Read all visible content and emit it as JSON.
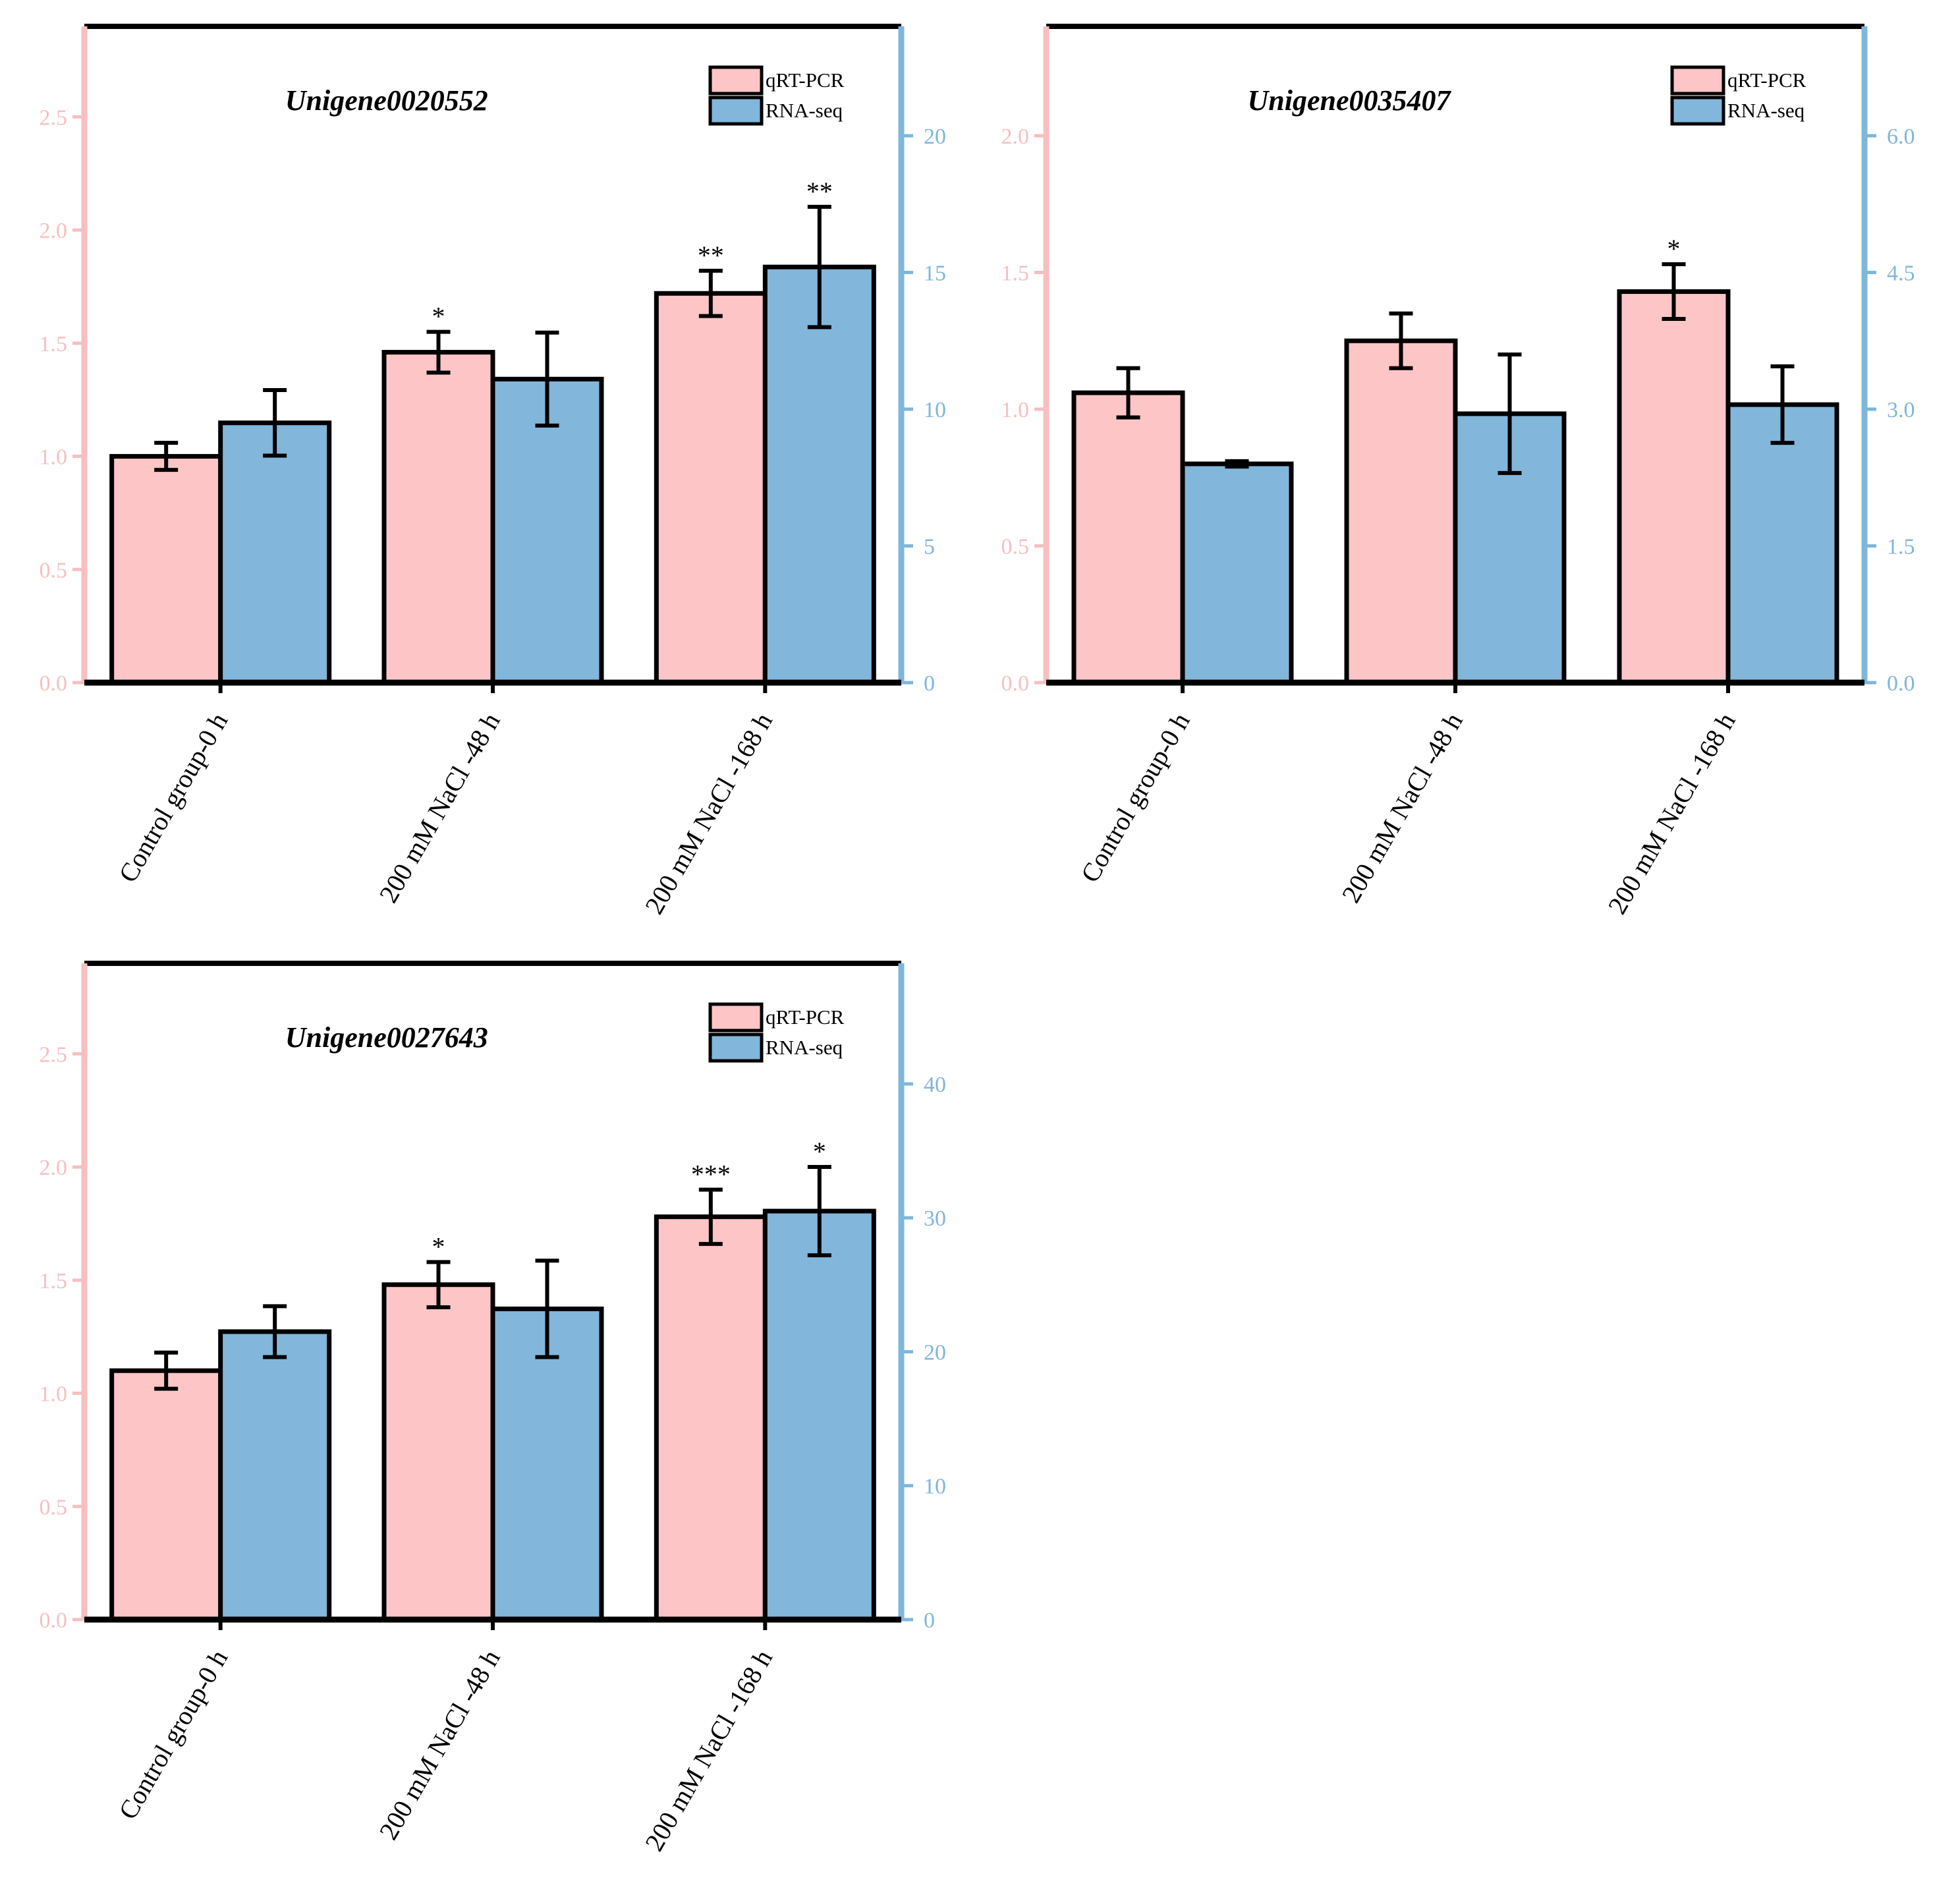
{
  "colors": {
    "qrt": "#fdc5c6",
    "rna": "#82b6db",
    "left_axis": "#f7bfc0",
    "right_axis": "#7fb6db",
    "frame": "#000000"
  },
  "chart_data": [
    {
      "type": "bar",
      "title": "Unigene0020552",
      "categories": [
        "Control group-0 h",
        "200 mM NaCl -48 h",
        "200 mM NaCl -168 h"
      ],
      "series": [
        {
          "name": "qRT-PCR",
          "axis": "left",
          "values": [
            1.0,
            1.46,
            1.72
          ],
          "errors": [
            0.06,
            0.09,
            0.1
          ],
          "significance": [
            "",
            "*",
            "**"
          ]
        },
        {
          "name": "RNA-seq",
          "axis": "right",
          "values": [
            9.5,
            11.1,
            15.2
          ],
          "errors": [
            1.2,
            1.7,
            2.2
          ],
          "significance": [
            "",
            "",
            "**"
          ]
        }
      ],
      "left_axis": {
        "ylim": [
          0,
          2.9
        ],
        "ticks": [
          0.0,
          0.5,
          1.0,
          1.5,
          2.0,
          2.5
        ],
        "labels": [
          "0.0",
          "0.5",
          "1.0",
          "1.5",
          "2.0",
          "2.5"
        ]
      },
      "right_axis": {
        "ylim": [
          0,
          24
        ],
        "ticks": [
          0,
          5,
          10,
          15,
          20
        ],
        "labels": [
          "0",
          "5",
          "10",
          "15",
          "20"
        ]
      },
      "legend": "top-right"
    },
    {
      "type": "bar",
      "title": "Unigene0035407",
      "categories": [
        "Control group-0 h",
        "200 mM NaCl -48 h",
        "200 mM NaCl -168 h"
      ],
      "series": [
        {
          "name": "qRT-PCR",
          "axis": "left",
          "values": [
            1.06,
            1.25,
            1.43
          ],
          "errors": [
            0.09,
            0.1,
            0.1
          ],
          "significance": [
            "",
            "",
            "*"
          ]
        },
        {
          "name": "RNA-seq",
          "axis": "right",
          "values": [
            2.4,
            2.95,
            3.05
          ],
          "errors": [
            0.03,
            0.65,
            0.42
          ],
          "significance": [
            "",
            "",
            ""
          ]
        }
      ],
      "left_axis": {
        "ylim": [
          0,
          2.4
        ],
        "ticks": [
          0.0,
          0.5,
          1.0,
          1.5,
          2.0
        ],
        "labels": [
          "0.0",
          "0.5",
          "1.0",
          "1.5",
          "2.0"
        ]
      },
      "right_axis": {
        "ylim": [
          0,
          7.2
        ],
        "ticks": [
          0,
          1.5,
          3.0,
          4.5,
          6.0
        ],
        "labels": [
          "0.0",
          "1.5",
          "3.0",
          "4.5",
          "6.0"
        ]
      },
      "legend": "top-right"
    },
    {
      "type": "bar",
      "title": "Unigene0027643",
      "categories": [
        "Control group-0 h",
        "200 mM NaCl -48 h",
        "200 mM NaCl -168 h"
      ],
      "series": [
        {
          "name": "qRT-PCR",
          "axis": "left",
          "values": [
            1.1,
            1.48,
            1.78
          ],
          "errors": [
            0.08,
            0.1,
            0.12
          ],
          "significance": [
            "",
            "*",
            "***"
          ]
        },
        {
          "name": "RNA-seq",
          "axis": "right",
          "values": [
            21.5,
            23.2,
            30.5
          ],
          "errors": [
            1.9,
            3.6,
            3.3
          ],
          "significance": [
            "",
            "",
            "*"
          ]
        }
      ],
      "left_axis": {
        "ylim": [
          0,
          2.9
        ],
        "ticks": [
          0.0,
          0.5,
          1.0,
          1.5,
          2.0,
          2.5
        ],
        "labels": [
          "0.0",
          "0.5",
          "1.0",
          "1.5",
          "2.0",
          "2.5"
        ]
      },
      "right_axis": {
        "ylim": [
          0,
          49
        ],
        "ticks": [
          0,
          10,
          20,
          30,
          40
        ],
        "labels": [
          "0",
          "10",
          "20",
          "30",
          "40"
        ]
      },
      "legend": "top-right"
    }
  ]
}
